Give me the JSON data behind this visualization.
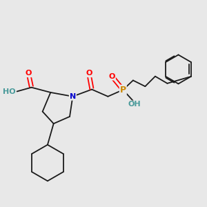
{
  "background_color": "#e8e8e8",
  "bond_color": "#1a1a1a",
  "figsize": [
    3.0,
    3.0
  ],
  "dpi": 100,
  "atom_colors": {
    "O": "#ff0000",
    "N": "#0000cc",
    "P": "#cc8800",
    "OH_teal": "#4a9a9a",
    "C": "#1a1a1a"
  },
  "lw": 1.3
}
